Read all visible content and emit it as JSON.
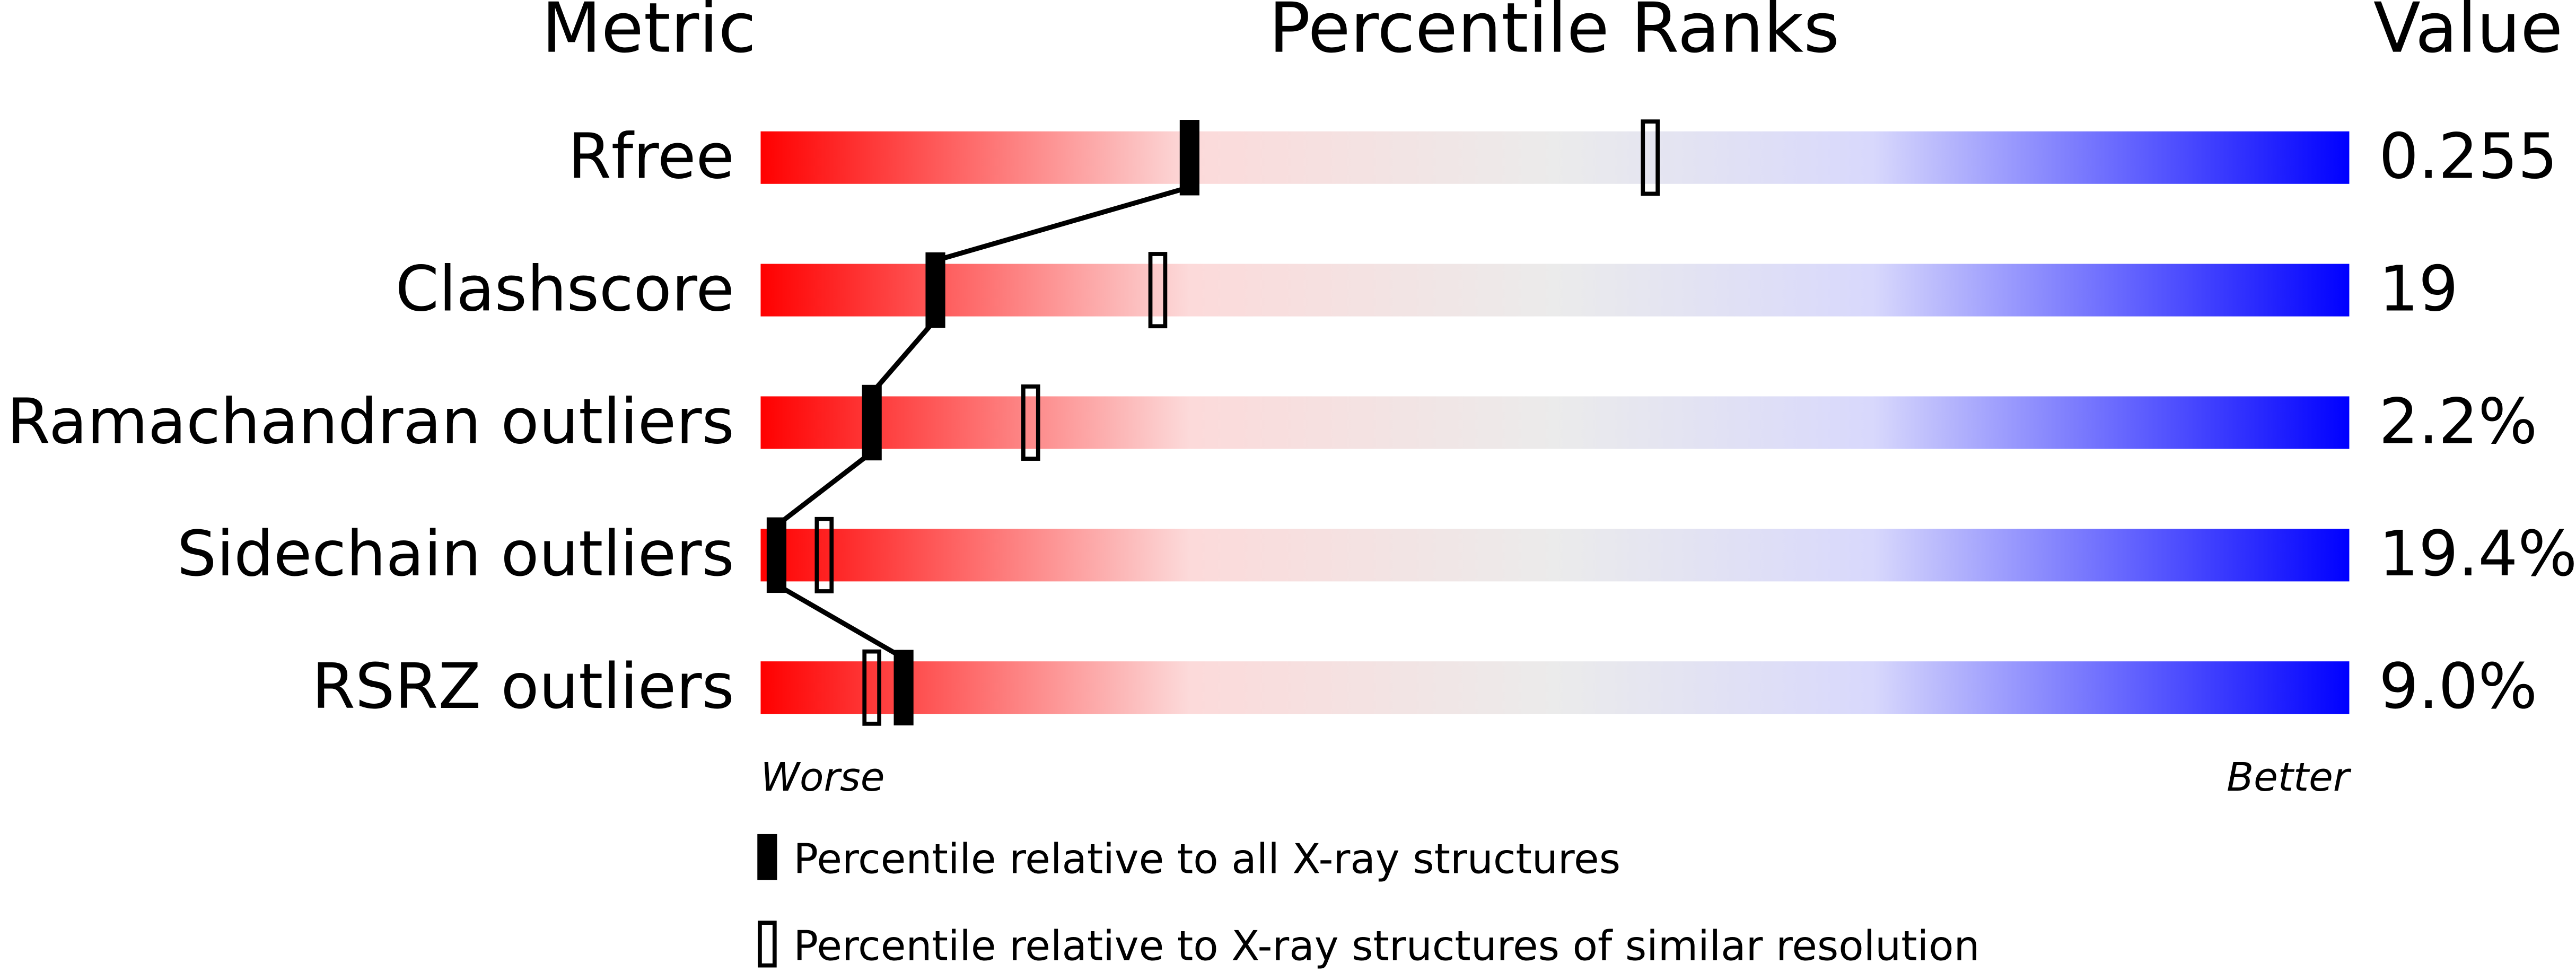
{
  "chart_data": {
    "type": "percentile",
    "headers": [
      "Metric",
      "Percentile Ranks",
      "Value"
    ],
    "categories": [
      "Rfree",
      "Clashscore",
      "Ramachandran outliers",
      "Sidechain outliers",
      "RSRZ outliers"
    ],
    "metric_values": [
      "0.255",
      "19",
      "2.2%",
      "19.4%",
      "9.0%"
    ],
    "series": [
      {
        "name": "Percentile relative to all X-ray structures",
        "color": "#000000",
        "filled": true,
        "values": [
          27,
          11,
          7,
          1,
          9
        ]
      },
      {
        "name": "Percentile relative to X-ray structures of similar resolution",
        "color": "#000000",
        "filled": false,
        "values": [
          56,
          25,
          17,
          4,
          7
        ]
      }
    ],
    "xlim": [
      0,
      100
    ],
    "axis_ends": [
      "Worse",
      "Better"
    ],
    "gradient": [
      "#ff0000",
      "#fcdada",
      "#ebebeb",
      "#d8d8fc",
      "#0000ff"
    ]
  }
}
